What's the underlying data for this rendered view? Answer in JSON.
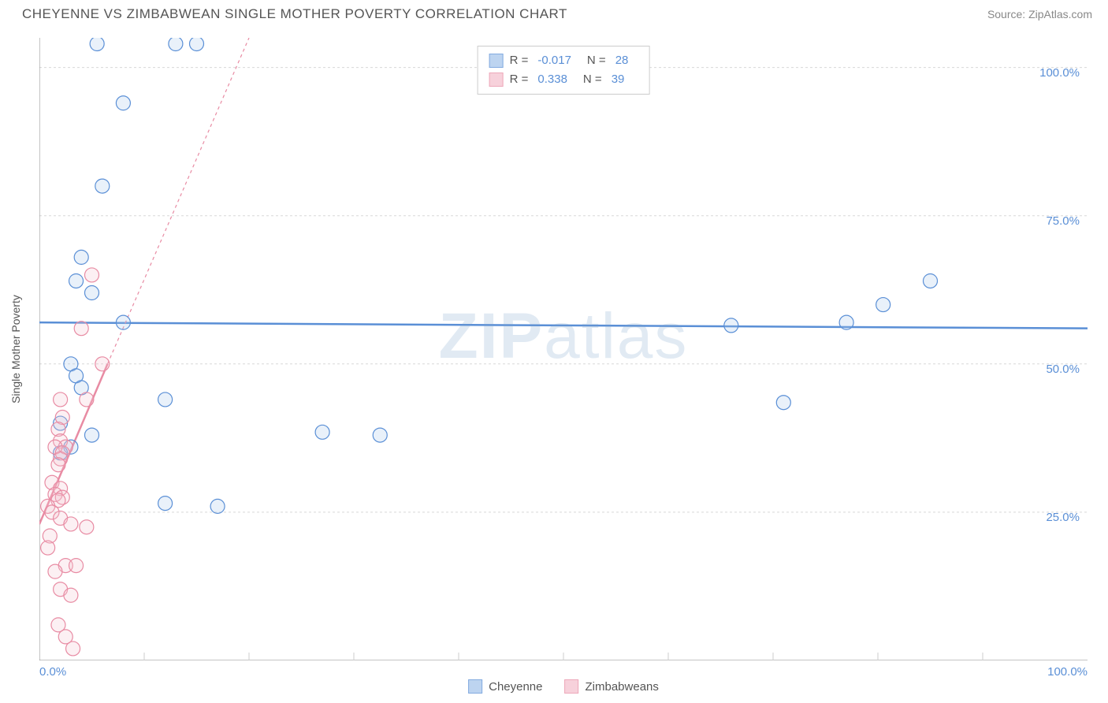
{
  "header": {
    "title": "CHEYENNE VS ZIMBABWEAN SINGLE MOTHER POVERTY CORRELATION CHART",
    "source_prefix": "Source: ",
    "source_name": "ZipAtlas.com"
  },
  "chart": {
    "type": "scatter",
    "y_axis_title": "Single Mother Poverty",
    "watermark": "ZIPatlas",
    "xlim": [
      0,
      100
    ],
    "ylim": [
      0,
      105
    ],
    "background_color": "#ffffff",
    "grid_color": "#d8d8d8",
    "axis_color": "#888888",
    "tick_color": "#cccccc",
    "y_ticks": [
      25,
      50,
      75,
      100
    ],
    "y_tick_labels": [
      "25.0%",
      "50.0%",
      "75.0%",
      "100.0%"
    ],
    "x_ticks": [
      0,
      100
    ],
    "x_minor_ticks": [
      10,
      20,
      30,
      40,
      50,
      60,
      70,
      80,
      90
    ],
    "x_tick_labels": [
      "0.0%",
      "100.0%"
    ],
    "marker_radius": 9,
    "marker_stroke_width": 1.2,
    "marker_fill_opacity": 0.25,
    "series": [
      {
        "name": "Cheyenne",
        "color_stroke": "#5a8fd6",
        "color_fill": "#a8c6ec",
        "R": "-0.017",
        "N": "28",
        "trend": {
          "x1": 0,
          "y1": 57,
          "x2": 100,
          "y2": 56,
          "dash": "none",
          "width": 2.5
        },
        "points": [
          [
            5.5,
            104
          ],
          [
            13,
            104
          ],
          [
            15,
            104
          ],
          [
            8,
            94
          ],
          [
            6,
            80
          ],
          [
            4,
            68
          ],
          [
            3.5,
            64
          ],
          [
            5,
            62
          ],
          [
            8,
            57
          ],
          [
            3,
            50
          ],
          [
            3.5,
            48
          ],
          [
            4,
            46
          ],
          [
            12,
            44
          ],
          [
            2,
            40
          ],
          [
            5,
            38
          ],
          [
            3,
            36
          ],
          [
            2,
            35
          ],
          [
            27,
            38.5
          ],
          [
            32.5,
            38
          ],
          [
            12,
            26.5
          ],
          [
            17,
            26
          ],
          [
            66,
            56.5
          ],
          [
            71,
            43.5
          ],
          [
            77,
            57
          ],
          [
            80.5,
            60
          ],
          [
            85,
            64
          ]
        ]
      },
      {
        "name": "Zimbabweans",
        "color_stroke": "#e88ba3",
        "color_fill": "#f5c2d0",
        "R": "0.338",
        "N": "39",
        "trend": {
          "x1": 0,
          "y1": 23,
          "x2": 6.5,
          "y2": 50,
          "dash": "none",
          "width": 2.5
        },
        "trend_ext": {
          "x1": 6.5,
          "y1": 50,
          "x2": 20,
          "y2": 105,
          "dash": "4 4",
          "width": 1.2
        },
        "points": [
          [
            5,
            65
          ],
          [
            4,
            56
          ],
          [
            6,
            50
          ],
          [
            4.5,
            44
          ],
          [
            2,
            44
          ],
          [
            2.2,
            41
          ],
          [
            1.8,
            39
          ],
          [
            2,
            37
          ],
          [
            2.5,
            36
          ],
          [
            1.5,
            36
          ],
          [
            2.2,
            35
          ],
          [
            2,
            34
          ],
          [
            1.8,
            33
          ],
          [
            1.2,
            30
          ],
          [
            2,
            29
          ],
          [
            1.5,
            28
          ],
          [
            2.2,
            27.5
          ],
          [
            1.8,
            27
          ],
          [
            0.8,
            26
          ],
          [
            1.2,
            25
          ],
          [
            2,
            24
          ],
          [
            3,
            23
          ],
          [
            4.5,
            22.5
          ],
          [
            1,
            21
          ],
          [
            0.8,
            19
          ],
          [
            2.5,
            16
          ],
          [
            3.5,
            16
          ],
          [
            1.5,
            15
          ],
          [
            2,
            12
          ],
          [
            3,
            11
          ],
          [
            1.8,
            6
          ],
          [
            2.5,
            4
          ],
          [
            3.2,
            2
          ]
        ]
      }
    ],
    "legend_top": {
      "R_label": "R =",
      "N_label": "N ="
    },
    "legend_bottom": {
      "items": [
        "Cheyenne",
        "Zimbabweans"
      ]
    }
  }
}
